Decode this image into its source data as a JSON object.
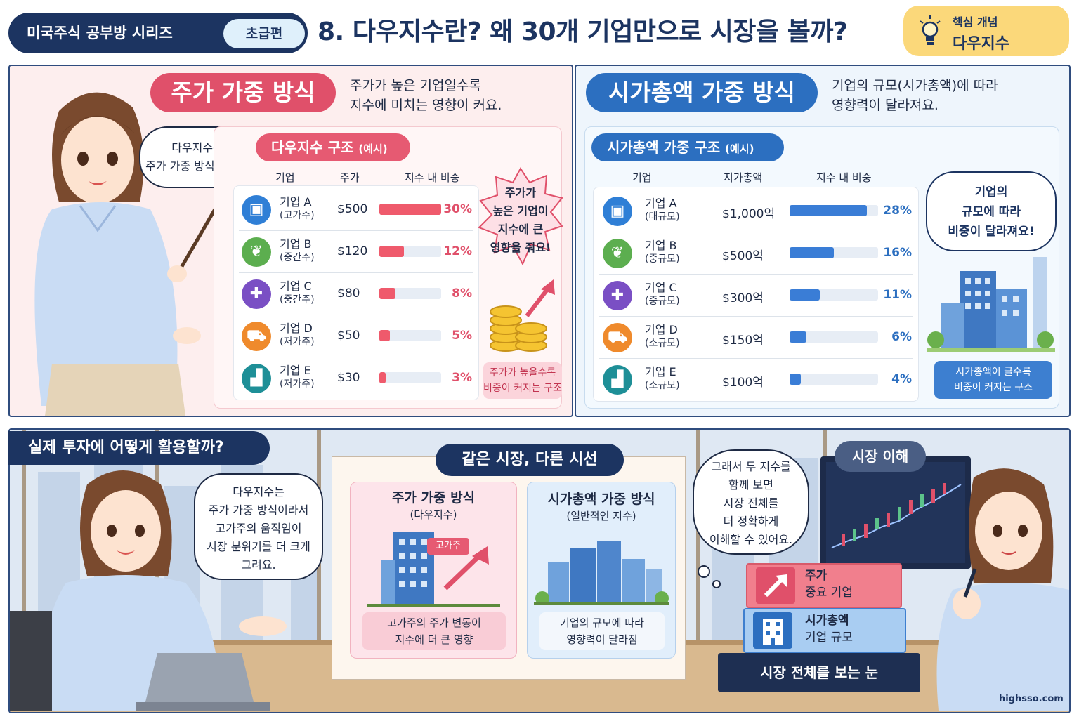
{
  "header": {
    "series": "미국주식 공부방 시리즈",
    "level": "초급편",
    "title": "8. 다우지수란? 왜 30개 기업만으로 시장을 볼까?",
    "concept_label": "핵심 개념",
    "concept_value": "다우지수"
  },
  "left": {
    "method_title": "주가 가중 방식",
    "desc_1": "주가가 높은 기업일수록",
    "desc_2": "지수에 미치는 영향이 커요.",
    "speech_1": "다우지수는",
    "speech_2": "주가 가중 방식이에요.",
    "structure_title": "다우지수 구조",
    "structure_tag": "(예시)",
    "col_company": "기업",
    "col_price": "주가",
    "col_weight": "지수 내 비중",
    "rows": [
      {
        "name": "기업 A",
        "sub": "(고가주)",
        "price": "$500",
        "pct": "30%",
        "value": 30,
        "color": "#2f7fd6",
        "icon": "▣"
      },
      {
        "name": "기업 B",
        "sub": "(중간주)",
        "price": "$120",
        "pct": "12%",
        "value": 12,
        "color": "#5cae4f",
        "icon": "❦"
      },
      {
        "name": "기업 C",
        "sub": "(중간주)",
        "price": "$80",
        "pct": "8%",
        "value": 8,
        "color": "#7a4fc4",
        "icon": "✚"
      },
      {
        "name": "기업 D",
        "sub": "(저가주)",
        "price": "$50",
        "pct": "5%",
        "value": 5,
        "color": "#ef8a2c",
        "icon": "⛟"
      },
      {
        "name": "기업 E",
        "sub": "(저가주)",
        "price": "$30",
        "pct": "3%",
        "value": 3,
        "color": "#1e8f97",
        "icon": "▟"
      }
    ],
    "burst_1": "주가가",
    "burst_2": "높은 기업이",
    "burst_3": "지수에 큰",
    "burst_4": "영향을 줘요!",
    "note_1": "주가가 높을수록",
    "note_2": "비중이 커지는 구조"
  },
  "right": {
    "method_title": "시가총액 가중 방식",
    "desc_1": "기업의 규모(시가총액)에 따라",
    "desc_2": "영향력이 달라져요.",
    "structure_title": "시가총액 가중 구조",
    "structure_tag": "(예시)",
    "col_company": "기업",
    "col_cap": "지가총액",
    "col_weight": "지수 내 비중",
    "rows": [
      {
        "name": "기업 A",
        "sub": "(대규모)",
        "cap": "$1,000억",
        "pct": "28%",
        "value": 28,
        "color": "#2f7fd6",
        "icon": "▣"
      },
      {
        "name": "기업 B",
        "sub": "(중규모)",
        "cap": "$500억",
        "pct": "16%",
        "value": 16,
        "color": "#5cae4f",
        "icon": "❦"
      },
      {
        "name": "기업 C",
        "sub": "(중규모)",
        "cap": "$300억",
        "pct": "11%",
        "value": 11,
        "color": "#7a4fc4",
        "icon": "✚"
      },
      {
        "name": "기업 D",
        "sub": "(소규모)",
        "cap": "$150억",
        "pct": "6%",
        "value": 6,
        "color": "#ef8a2c",
        "icon": "⛟"
      },
      {
        "name": "기업 E",
        "sub": "(소규모)",
        "cap": "$100억",
        "pct": "4%",
        "value": 4,
        "color": "#1e8f97",
        "icon": "▟"
      }
    ],
    "bubble_1": "기업의",
    "bubble_2": "규모에 따라",
    "bubble_3": "비중이 달라져요!",
    "note_1": "시가총액이 클수록",
    "note_2": "비중이 커지는 구조"
  },
  "bottom": {
    "question": "실제 투자에 어떻게 활용할까?",
    "speech_1": "다우지수는",
    "speech_2": "주가 가중 방식이라서",
    "speech_3": "고가주의 움직임이",
    "speech_4": "시장 분위기를 더 크게",
    "speech_5": "그려요.",
    "board_title": "같은 시장, 다른 시선",
    "card1_title": "주가 가중 방식",
    "card1_sub": "(다우지수)",
    "card1_tag": "고가주",
    "card1_foot_1": "고가주의 주가 변동이",
    "card1_foot_2": "지수에 더 큰 영향",
    "card2_title": "시가총액 가중 방식",
    "card2_sub": "(일반적인 지수)",
    "card2_foot_1": "기업의 규모에 따라",
    "card2_foot_2": "영향력이 달라짐",
    "thought_1": "그래서 두 지수를",
    "thought_2": "함께 보면",
    "thought_3": "시장 전체를",
    "thought_4": "더 정확하게",
    "thought_5": "이해할 수 있어요.",
    "market_label": "시장 이해",
    "block1_1": "주가",
    "block1_2": "중요 기업",
    "block2_1": "시가총액",
    "block2_2": "기업 규모",
    "block3": "시장 전체를 보는 눈",
    "site": "highsso.com"
  },
  "colors": {
    "navy": "#1c3461",
    "pink": "#e0506a",
    "blue": "#2c6fc0",
    "bar_pink": "#ef5a6c",
    "bar_blue": "#3a7dd6"
  }
}
